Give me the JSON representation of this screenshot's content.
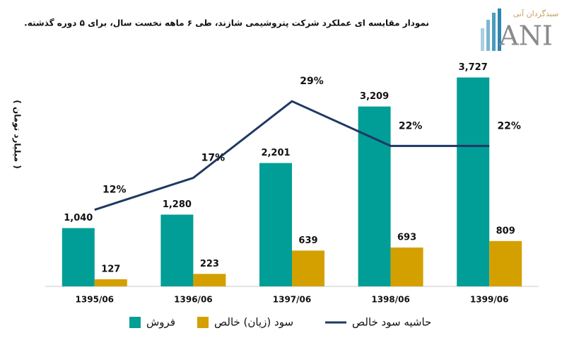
{
  "chart_data": {
    "type": "bar-line",
    "title": "نمودار مقایسه ای عملکرد شرکت پتروشیمی شازند، طی ۶ ماهه نخست سال، برای ۵ دوره گذشته.",
    "y_axis_label": "( میلیارد تومان )",
    "categories": [
      "1395/06",
      "1396/06",
      "1397/06",
      "1398/06",
      "1399/06"
    ],
    "series": [
      {
        "name": "فروش",
        "type": "bar",
        "color": "#009e96",
        "values": [
          1040,
          1280,
          2201,
          3209,
          3727
        ],
        "value_labels": [
          "1,040",
          "1,280",
          "2,201",
          "3,209",
          "3,727"
        ]
      },
      {
        "name": "سود (زیان) خالص",
        "type": "bar",
        "color": "#d4a000",
        "values": [
          127,
          223,
          639,
          693,
          809
        ]
      },
      {
        "name": "حاشیه سود خالص",
        "type": "line",
        "axis": "y2",
        "color": "#1f3864",
        "values": [
          12,
          17,
          29,
          22,
          22
        ],
        "value_labels": [
          "12%",
          "17%",
          "29%",
          "22%",
          "22%"
        ]
      }
    ],
    "ylim": [
      0,
      4100
    ],
    "y2lim": [
      0,
      36
    ],
    "legend": "bottom"
  },
  "logo": {
    "name": "سبدگردان آنی",
    "mark": "ANI"
  }
}
